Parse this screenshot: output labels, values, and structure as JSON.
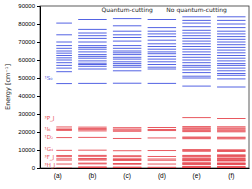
{
  "chart_data": {
    "type": "level",
    "ylabel": "Energy [cm⁻¹]",
    "ylim": [
      0,
      90000
    ],
    "yticks": [
      0,
      10000,
      20000,
      30000,
      40000,
      50000,
      60000,
      70000,
      80000,
      90000
    ],
    "categories": [
      "(a)",
      "(b)",
      "(c)",
      "(d)",
      "(e)",
      "(f)"
    ],
    "series": [
      {
        "color": "#e5454d",
        "values": [
          [
            0,
            2200,
            4400,
            5100,
            6300,
            6900,
            9800,
            16900,
            20900,
            21500,
            21600,
            22800
          ],
          [
            0,
            300,
            600,
            2300,
            2700,
            4400,
            4900,
            5300,
            6500,
            7000,
            9900,
            17000,
            20600,
            21300,
            21900,
            22700
          ],
          [
            0,
            200,
            500,
            2100,
            2500,
            4200,
            4700,
            5100,
            6300,
            6800,
            9600,
            16400,
            20400,
            21000,
            21600,
            22400
          ],
          [
            0,
            400,
            2200,
            4300,
            5000,
            6400,
            9700,
            16700,
            20800,
            21400,
            22500
          ],
          [
            0,
            150,
            350,
            600,
            900,
            2000,
            2300,
            2600,
            2900,
            4000,
            4300,
            4600,
            5000,
            5400,
            6200,
            6600,
            7000,
            9300,
            9800,
            10200,
            16300,
            16800,
            17200,
            20200,
            20700,
            21200,
            21800,
            22300,
            23000,
            28000
          ],
          [
            0,
            200,
            450,
            800,
            1900,
            2200,
            2500,
            2800,
            3900,
            4200,
            4500,
            4900,
            5300,
            6100,
            6500,
            6900,
            7300,
            9200,
            9700,
            10100,
            16200,
            16700,
            17100,
            20100,
            20600,
            21100,
            21700,
            22200,
            22900,
            27500
          ]
        ]
      },
      {
        "color": "#3f51e0",
        "values": [
          [
            46900,
            53500,
            55500,
            57000,
            58500,
            60000,
            61200,
            62500,
            63800,
            65000,
            66500,
            68000,
            70000,
            74000,
            80500
          ],
          [
            47000,
            55000,
            56500,
            57500,
            58200,
            59500,
            61000,
            62000,
            63000,
            64500,
            66000,
            67000,
            68000,
            70000,
            72000,
            73500,
            75000,
            77000,
            82500
          ],
          [
            47100,
            54000,
            56000,
            57000,
            58000,
            59000,
            60500,
            61500,
            63000,
            64000,
            65000,
            66500,
            68000,
            70500,
            72500,
            74000,
            76000,
            79000,
            83000
          ],
          [
            47000,
            55000,
            56000,
            57500,
            59000,
            60500,
            62000,
            63500,
            64500,
            66000,
            67500,
            69000,
            71000,
            73000,
            74500,
            76000,
            78000,
            82500
          ],
          [
            45500,
            50000,
            51000,
            53000,
            54500,
            56000,
            57000,
            58500,
            60000,
            61500,
            63000,
            64500,
            66000,
            67500,
            69000,
            70500,
            72000,
            73500,
            75000,
            76500,
            78500,
            80500,
            82000,
            84000
          ],
          [
            45000,
            49500,
            51500,
            52500,
            54000,
            55500,
            57000,
            58000,
            59500,
            61000,
            62500,
            64000,
            65500,
            67000,
            68500,
            70000,
            71500,
            73000,
            74500,
            76000,
            78000,
            80000,
            82000,
            84000
          ]
        ]
      }
    ],
    "annotations": [
      {
        "text": "Quantum-cutting",
        "category": "(c)",
        "y": 87500
      },
      {
        "text": "No quantum-cutting",
        "category": "(e)",
        "y": 87500
      }
    ],
    "level_labels": [
      {
        "text": "¹S₀",
        "category": "(a)",
        "y": 49500
      },
      {
        "text": "³P_J",
        "category": "(a)",
        "y": 27500
      },
      {
        "text": "¹I₆",
        "category": "(a)",
        "y": 21500
      },
      {
        "text": "¹D₂",
        "category": "(a)",
        "y": 16800
      },
      {
        "text": "¹G₄",
        "category": "(a)",
        "y": 10500
      },
      {
        "text": "³F_J",
        "category": "(a)",
        "y": 5800
      },
      {
        "text": "³H_J",
        "category": "(a)",
        "y": 1300
      }
    ]
  }
}
